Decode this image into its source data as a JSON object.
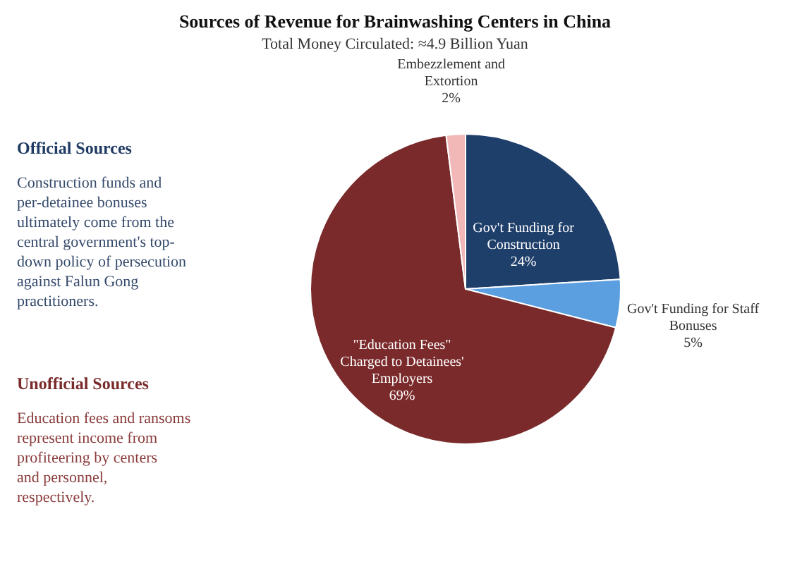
{
  "chart_data": {
    "type": "pie",
    "title": "Sources of Revenue for Brainwashing Centers in China",
    "subtitle": "Total Money Circulated: ≈4.9 Billion Yuan",
    "categories": [
      "Gov't Funding for Construction",
      "Gov't Funding for Staff Bonuses",
      "\"Education Fees\" Charged to Detainees' Employers",
      "Embezzlement and Extortion"
    ],
    "values": [
      24,
      5,
      69,
      2
    ],
    "value_labels": [
      "24%",
      "5%",
      "69%",
      "2%"
    ],
    "colors": [
      "#1f3f6b",
      "#5b9fe0",
      "#7a2a2a",
      "#f2b8b8"
    ],
    "annotations": [
      "Official Sources",
      "Construction funds and per-detainee bonuses ultimately come from the central government's top-down policy of persecution against Falun Gong practitioners.",
      "Unofficial Sources",
      "Education fees and ransoms represent income from profiteering by centers and personnel, respectively."
    ]
  }
}
